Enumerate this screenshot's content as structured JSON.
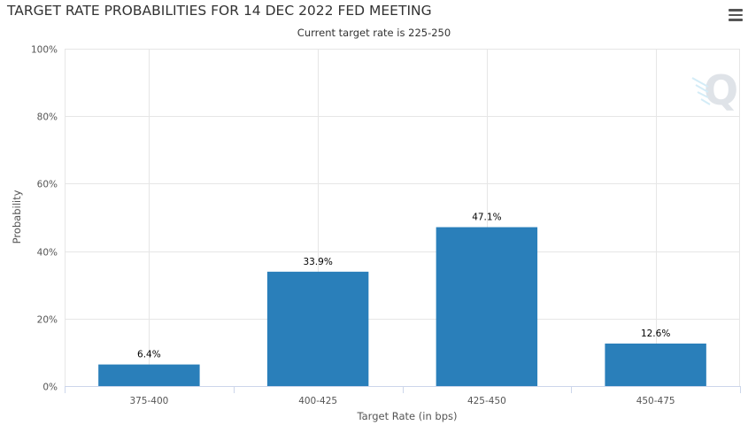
{
  "header": {
    "title": "TARGET RATE PROBABILITIES FOR 14 DEC 2022 FED MEETING",
    "subtitle": "Current target rate is 225-250",
    "menu_icon": "hamburger-menu-icon",
    "watermark_icon": "q-logo-icon"
  },
  "chart_data": {
    "type": "bar",
    "title": "TARGET RATE PROBABILITIES FOR 14 DEC 2022 FED MEETING",
    "subtitle": "Current target rate is 225-250",
    "xlabel": "Target Rate (in bps)",
    "ylabel": "Probability",
    "categories": [
      "375-400",
      "400-425",
      "425-450",
      "450-475"
    ],
    "values": [
      6.4,
      33.9,
      47.1,
      12.6
    ],
    "data_labels": [
      "6.4%",
      "33.9%",
      "47.1%",
      "12.6%"
    ],
    "ylim": [
      0,
      100
    ],
    "yticks": [
      0,
      20,
      40,
      60,
      80,
      100
    ],
    "ytick_labels": [
      "0%",
      "20%",
      "40%",
      "60%",
      "80%",
      "100%"
    ],
    "grid": true,
    "bar_color": "#2a7fba",
    "grid_color": "#e6e6e6"
  }
}
